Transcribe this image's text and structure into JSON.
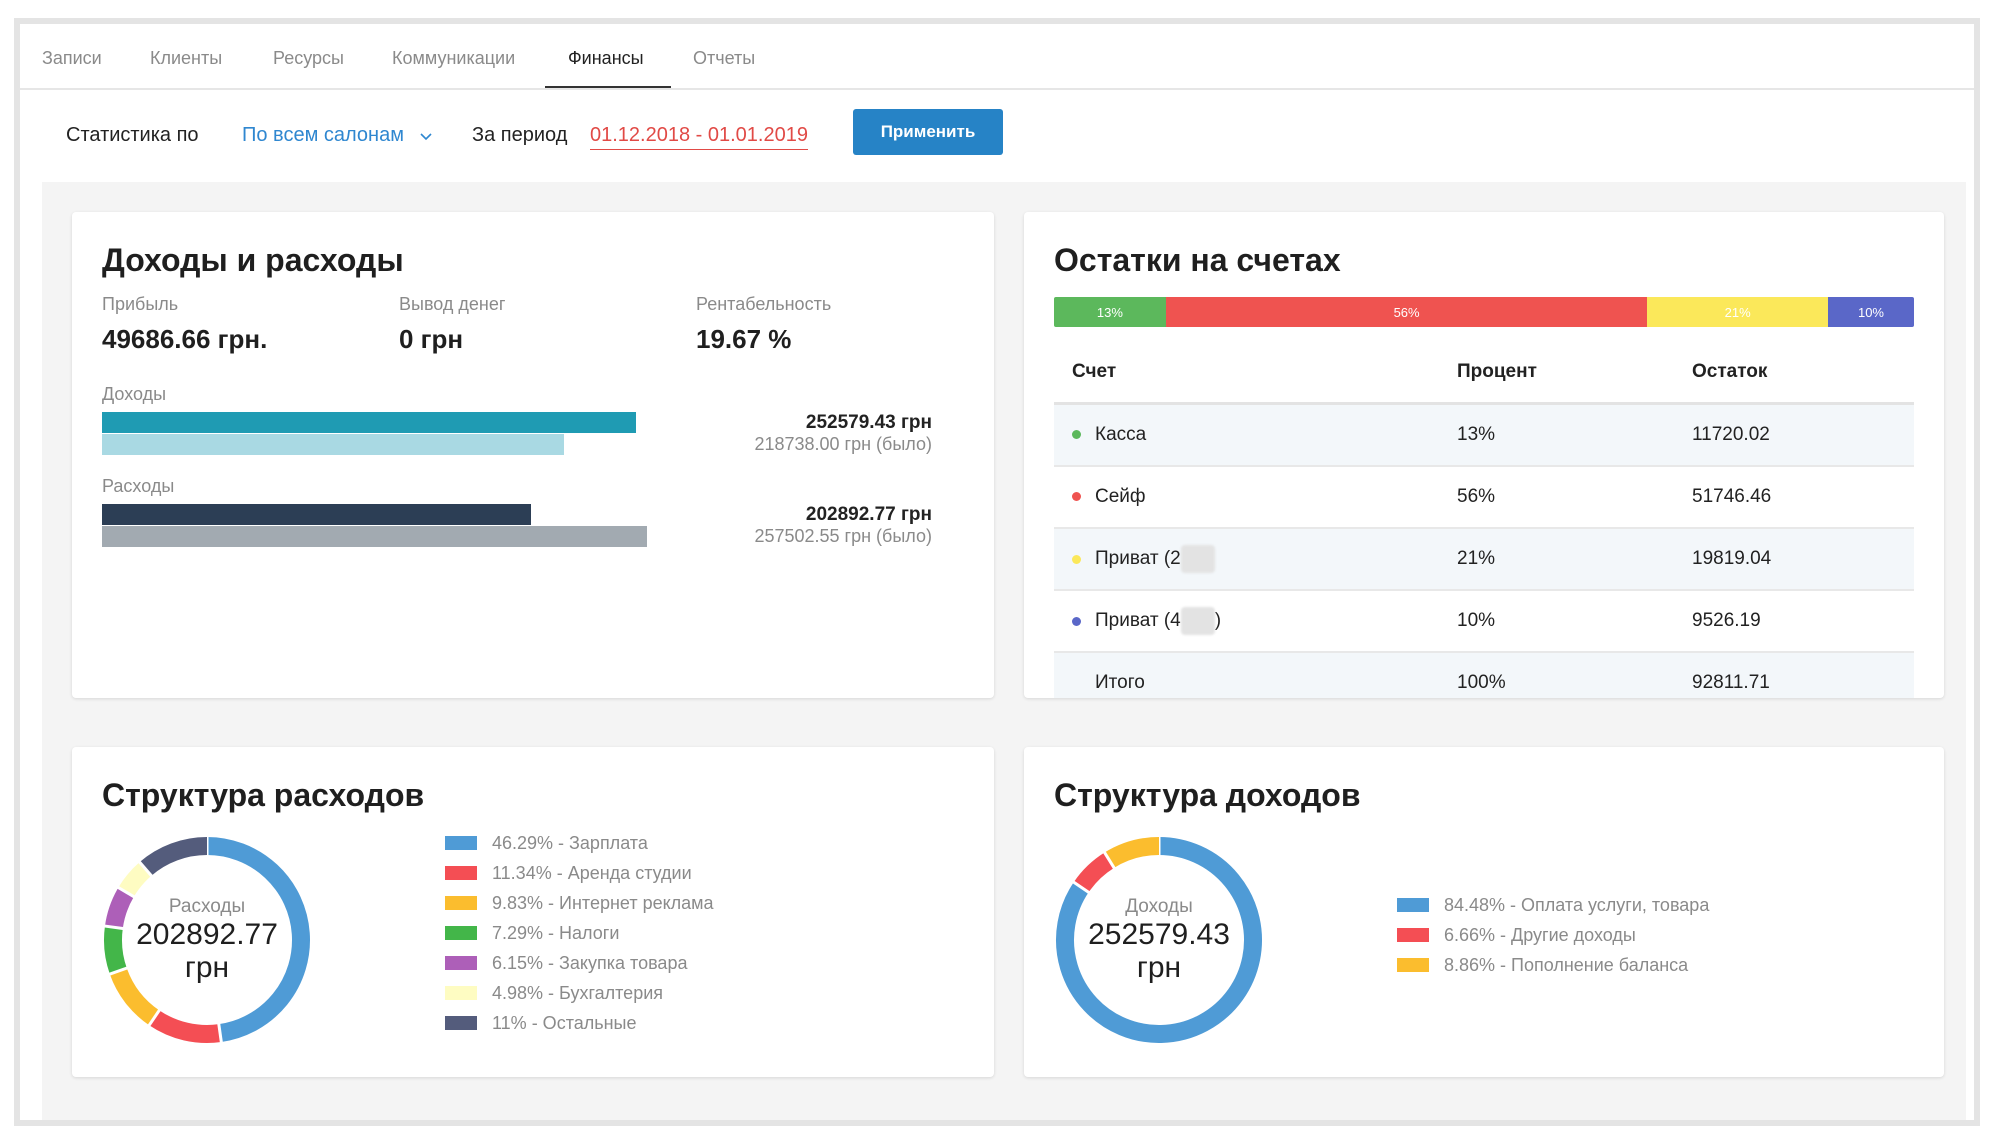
{
  "tabs": [
    {
      "label": "Записи"
    },
    {
      "label": "Клиенты"
    },
    {
      "label": "Ресурсы"
    },
    {
      "label": "Коммуникации"
    },
    {
      "label": "Финансы"
    },
    {
      "label": "Отчеты"
    }
  ],
  "active_tab": "Финансы",
  "filters": {
    "stats_label": "Статистика по",
    "salon_select": "По всем салонам",
    "period_label": "За период",
    "period_value": "01.12.2018 - 01.01.2019",
    "apply_label": "Применить"
  },
  "income_expense": {
    "title": "Доходы и расходы",
    "kpis": [
      {
        "label": "Прибыль",
        "value": "49686.66 грн."
      },
      {
        "label": "Вывод денег",
        "value": "0 грн"
      },
      {
        "label": "Рентабельность",
        "value": "19.67 %"
      }
    ],
    "income": {
      "label": "Доходы",
      "current": "252579.43 грн",
      "previous": "218738.00 грн (было)",
      "current_fraction": 0.98,
      "previous_fraction": 0.848
    },
    "expense": {
      "label": "Расходы",
      "current": "202892.77 грн",
      "previous": "257502.55 грн (было)",
      "current_fraction": 0.788,
      "previous_fraction": 1.0
    }
  },
  "balances": {
    "title": "Остатки на счетах",
    "segments": [
      {
        "label": "13%",
        "percent": 13,
        "color": "#5cb85c"
      },
      {
        "label": "56%",
        "percent": 56,
        "color": "#ef5350"
      },
      {
        "label": "21%",
        "percent": 21,
        "color": "#fbe85a"
      },
      {
        "label": "10%",
        "percent": 10,
        "color": "#5a67c8"
      }
    ],
    "headers": {
      "account": "Счет",
      "percent": "Процент",
      "balance": "Остаток"
    },
    "rows": [
      {
        "name": "Касса",
        "percent": "13%",
        "balance": "11720.02",
        "color": "#5cb85c"
      },
      {
        "name": "Сейф",
        "percent": "56%",
        "balance": "51746.46",
        "color": "#ef5350"
      },
      {
        "name": "Приват (2",
        "suffix": "",
        "percent": "21%",
        "balance": "19819.04",
        "color": "#fbe85a"
      },
      {
        "name": "Приват (4",
        "suffix": ")",
        "percent": "10%",
        "balance": "9526.19",
        "color": "#5a67c8"
      }
    ],
    "total": {
      "name": "Итого",
      "percent": "100%",
      "balance": "92811.71"
    }
  },
  "expense_structure": {
    "title": "Структура расходов",
    "center_label": "Расходы",
    "center_value": "202892.77",
    "center_unit": "грн",
    "items": [
      {
        "label": "46.29% - Зарплата",
        "percent": 46.29,
        "color": "#4f9bd6"
      },
      {
        "label": "11.34% - Аренда студии",
        "percent": 11.34,
        "color": "#f44e54"
      },
      {
        "label": "9.83% - Интернет реклама",
        "percent": 9.83,
        "color": "#fbbd2e"
      },
      {
        "label": "7.29% - Налоги",
        "percent": 7.29,
        "color": "#43b649"
      },
      {
        "label": "6.15% - Закупка товара",
        "percent": 6.15,
        "color": "#ad5fb8"
      },
      {
        "label": "4.98% - Бухгалтерия",
        "percent": 4.98,
        "color": "#fefcc2"
      },
      {
        "label": "11% - Остальные",
        "percent": 11,
        "color": "#545c7c"
      }
    ]
  },
  "income_structure": {
    "title": "Структура доходов",
    "center_label": "Доходы",
    "center_value": "252579.43",
    "center_unit": "грн",
    "items": [
      {
        "label": "84.48% - Оплата услуги, товара",
        "percent": 84.48,
        "color": "#4f9bd6"
      },
      {
        "label": "6.66% - Другие доходы",
        "percent": 6.66,
        "color": "#f44e54"
      },
      {
        "label": "8.86% - Пополнение баланса",
        "percent": 8.86,
        "color": "#fbbd2e"
      }
    ]
  }
}
